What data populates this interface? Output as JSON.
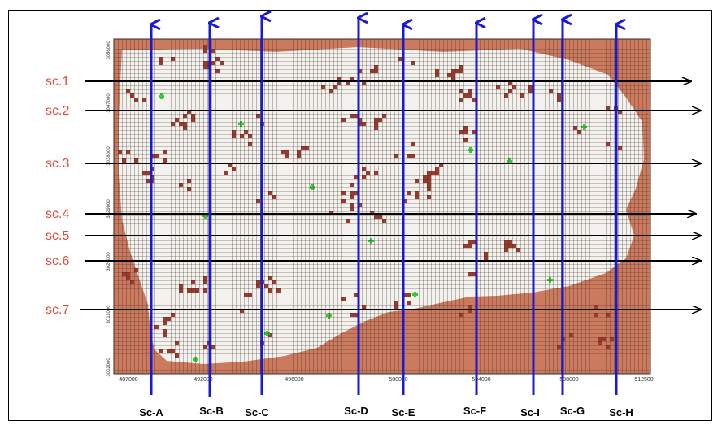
{
  "figure": {
    "row_sections": [
      {
        "label": "sc.1"
      },
      {
        "label": "sc.2"
      },
      {
        "label": "sc.3"
      },
      {
        "label": "sc.4"
      },
      {
        "label": "sc.5"
      },
      {
        "label": "sc.6"
      },
      {
        "label": "sc.7"
      }
    ],
    "column_sections": [
      {
        "label": "Sc-A"
      },
      {
        "label": "Sc-B"
      },
      {
        "label": "Sc-C"
      },
      {
        "label": "Sc-D"
      },
      {
        "label": "Sc-E"
      },
      {
        "label": "Sc-F"
      },
      {
        "label": "Sc-I"
      },
      {
        "label": "Sc-G"
      },
      {
        "label": "Sc-H"
      }
    ],
    "x_ticks": [
      "487000",
      "492000",
      "496000",
      "500000",
      "504000",
      "508000",
      "512500"
    ],
    "y_ticks": [
      "3058000",
      "3047000",
      "3038000",
      "3029000",
      "3020000",
      "3011000",
      "3002000"
    ],
    "colors": {
      "boundary_fill": "#cc7a5e",
      "domain_fill": "#f4f2ee",
      "grid_line": "#3a2a22",
      "cell_dark": "#9a3a2c",
      "cell_green": "#33cc33",
      "row_label": "#e24b3b",
      "row_arrow": "#000000",
      "column_arrow": "#1a1ad6",
      "column_label": "#000000"
    }
  }
}
